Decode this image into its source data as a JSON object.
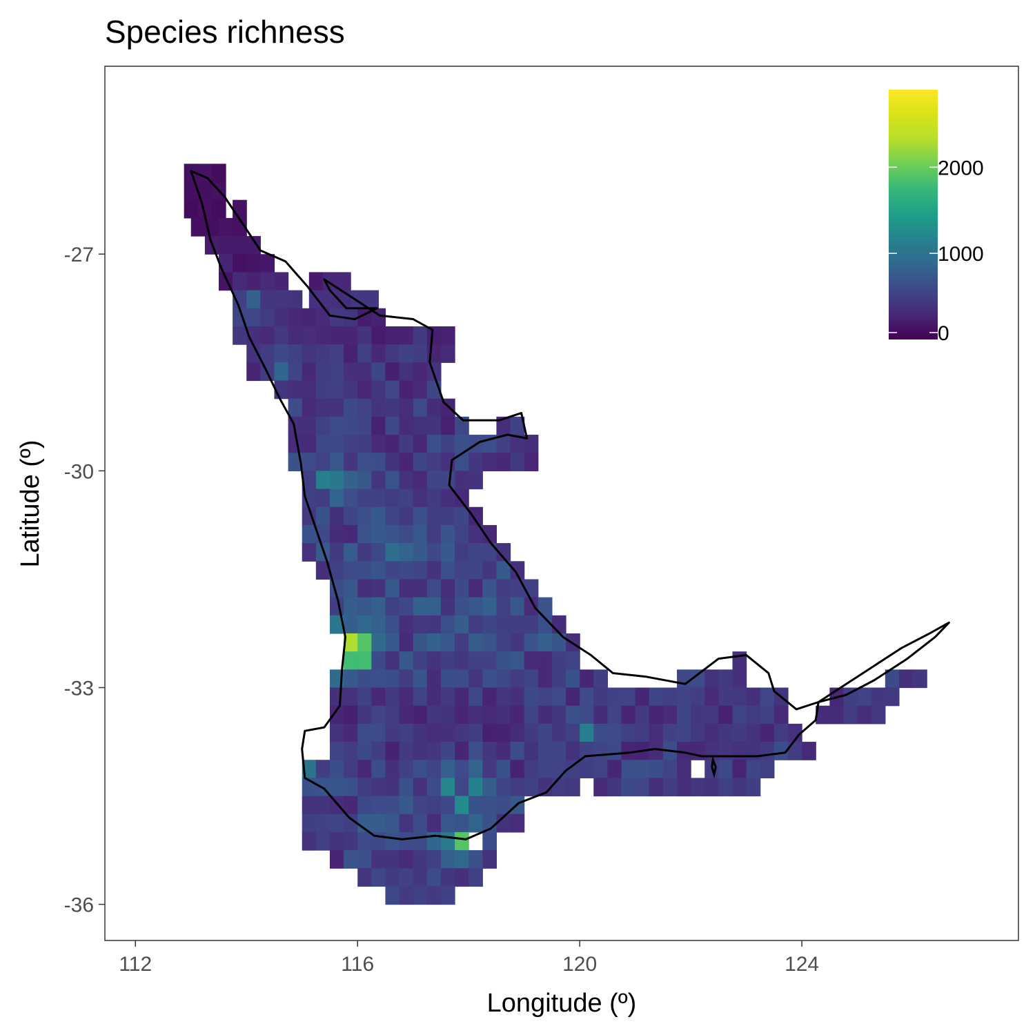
{
  "chart_data": {
    "type": "heatmap",
    "title": "Species richness",
    "xlabel": "Longitude (º)",
    "ylabel": "Latitude (º)",
    "xlim": [
      111.45,
      127.9
    ],
    "ylim": [
      -36.5,
      -24.4
    ],
    "x_ticks": [
      {
        "value": 112,
        "label": "112"
      },
      {
        "value": 116,
        "label": "116"
      },
      {
        "value": 120,
        "label": "120"
      },
      {
        "value": 124,
        "label": "124"
      }
    ],
    "y_ticks": [
      {
        "value": -27,
        "label": "-27"
      },
      {
        "value": -30,
        "label": "-30"
      },
      {
        "value": -33,
        "label": "-33"
      },
      {
        "value": -36,
        "label": "-36"
      }
    ],
    "cell_size": 0.25,
    "colorscale": "viridis",
    "legend": {
      "position": "top-right",
      "min": 0,
      "max": 2900,
      "ticks": [
        {
          "value": 0,
          "label": "0"
        },
        {
          "value": 1000,
          "label": "1000"
        },
        {
          "value": 2000,
          "label": "2000"
        }
      ]
    },
    "grid": false,
    "hotspots": [
      {
        "x": 115.875,
        "y": -32.375,
        "value": 2300
      },
      {
        "x": 116.125,
        "y": -32.375,
        "value": 1900
      },
      {
        "x": 115.875,
        "y": -32.625,
        "value": 1800
      },
      {
        "x": 116.125,
        "y": -32.625,
        "value": 1800
      },
      {
        "x": 117.875,
        "y": -35.125,
        "value": 1900
      },
      {
        "x": 115.375,
        "y": -30.125,
        "value": 1100
      },
      {
        "x": 115.625,
        "y": -30.125,
        "value": 1050
      },
      {
        "x": 116.625,
        "y": -31.0,
        "value": 1150
      },
      {
        "x": 117.875,
        "y": -34.625,
        "value": 1250
      },
      {
        "x": 117.625,
        "y": -34.375,
        "value": 1200
      },
      {
        "x": 118.125,
        "y": -34.375,
        "value": 1150
      },
      {
        "x": 115.125,
        "y": -33.625,
        "value": 1150
      },
      {
        "x": 120.125,
        "y": -33.625,
        "value": 1100
      },
      {
        "x": 115.125,
        "y": -34.125,
        "value": 1000
      },
      {
        "x": 114.625,
        "y": -28.625,
        "value": 850
      },
      {
        "x": 114.125,
        "y": -27.625,
        "value": 800
      }
    ],
    "grid_rows": [
      {
        "lat": -25.875,
        "ranges": [
          [
            113.0,
            113.5
          ]
        ],
        "base": 120
      },
      {
        "lat": -26.125,
        "ranges": [
          [
            113.0,
            113.5
          ]
        ],
        "base": 120
      },
      {
        "lat": -26.375,
        "ranges": [
          [
            113.0,
            113.5
          ],
          [
            113.875,
            114.0
          ]
        ],
        "base": 110
      },
      {
        "lat": -26.625,
        "ranges": [
          [
            113.125,
            114.0
          ]
        ],
        "base": 120
      },
      {
        "lat": -26.875,
        "ranges": [
          [
            113.375,
            114.25
          ]
        ],
        "base": 150
      },
      {
        "lat": -27.125,
        "ranges": [
          [
            113.625,
            114.5
          ]
        ],
        "base": 180
      },
      {
        "lat": -27.375,
        "ranges": [
          [
            113.625,
            114.75
          ],
          [
            115.25,
            115.75
          ]
        ],
        "base": 220
      },
      {
        "lat": -27.625,
        "ranges": [
          [
            113.875,
            115.0
          ],
          [
            115.25,
            116.25
          ]
        ],
        "base": 300
      },
      {
        "lat": -27.875,
        "ranges": [
          [
            113.875,
            116.5
          ]
        ],
        "base": 330
      },
      {
        "lat": -28.125,
        "ranges": [
          [
            113.875,
            117.75
          ]
        ],
        "base": 320
      },
      {
        "lat": -28.375,
        "ranges": [
          [
            114.125,
            117.75
          ]
        ],
        "base": 360
      },
      {
        "lat": -28.625,
        "ranges": [
          [
            114.125,
            117.5
          ]
        ],
        "base": 400
      },
      {
        "lat": -28.875,
        "ranges": [
          [
            114.625,
            117.5
          ]
        ],
        "base": 400
      },
      {
        "lat": -29.125,
        "ranges": [
          [
            114.875,
            117.75
          ]
        ],
        "base": 430
      },
      {
        "lat": -29.375,
        "ranges": [
          [
            114.875,
            118.0
          ],
          [
            118.625,
            119.0
          ]
        ],
        "base": 430
      },
      {
        "lat": -29.625,
        "ranges": [
          [
            114.875,
            119.25
          ]
        ],
        "base": 460
      },
      {
        "lat": -29.875,
        "ranges": [
          [
            114.875,
            119.25
          ]
        ],
        "base": 480
      },
      {
        "lat": -30.125,
        "ranges": [
          [
            115.125,
            118.25
          ]
        ],
        "base": 500
      },
      {
        "lat": -30.375,
        "ranges": [
          [
            115.125,
            118.0
          ]
        ],
        "base": 500
      },
      {
        "lat": -30.625,
        "ranges": [
          [
            115.125,
            118.25
          ]
        ],
        "base": 500
      },
      {
        "lat": -30.875,
        "ranges": [
          [
            115.125,
            118.5
          ]
        ],
        "base": 520
      },
      {
        "lat": -31.125,
        "ranges": [
          [
            115.125,
            118.75
          ]
        ],
        "base": 520
      },
      {
        "lat": -31.375,
        "ranges": [
          [
            115.375,
            119.0
          ]
        ],
        "base": 540
      },
      {
        "lat": -31.625,
        "ranges": [
          [
            115.625,
            119.25
          ]
        ],
        "base": 540
      },
      {
        "lat": -31.875,
        "ranges": [
          [
            115.625,
            119.5
          ]
        ],
        "base": 560
      },
      {
        "lat": -32.125,
        "ranges": [
          [
            115.625,
            119.75
          ]
        ],
        "base": 560
      },
      {
        "lat": -32.375,
        "ranges": [
          [
            115.875,
            120.0
          ]
        ],
        "base": 560
      },
      {
        "lat": -32.625,
        "ranges": [
          [
            115.875,
            120.0
          ],
          [
            122.875,
            123.0
          ]
        ],
        "base": 520
      },
      {
        "lat": -32.875,
        "ranges": [
          [
            115.625,
            120.5
          ],
          [
            121.875,
            123.0
          ],
          [
            125.625,
            126.25
          ]
        ],
        "base": 480
      },
      {
        "lat": -33.125,
        "ranges": [
          [
            115.625,
            123.75
          ],
          [
            124.625,
            125.75
          ]
        ],
        "base": 420
      },
      {
        "lat": -33.375,
        "ranges": [
          [
            115.625,
            123.75
          ],
          [
            124.375,
            125.5
          ]
        ],
        "base": 380
      },
      {
        "lat": -33.625,
        "ranges": [
          [
            115.625,
            124.0
          ]
        ],
        "base": 420
      },
      {
        "lat": -33.875,
        "ranges": [
          [
            115.625,
            124.25
          ]
        ],
        "base": 440
      },
      {
        "lat": -34.125,
        "ranges": [
          [
            115.125,
            122.0
          ],
          [
            122.375,
            123.5
          ]
        ],
        "base": 460
      },
      {
        "lat": -34.375,
        "ranges": [
          [
            115.125,
            120.0
          ],
          [
            120.375,
            123.25
          ]
        ],
        "base": 480
      },
      {
        "lat": -34.625,
        "ranges": [
          [
            115.125,
            119.0
          ]
        ],
        "base": 520
      },
      {
        "lat": -34.875,
        "ranges": [
          [
            115.125,
            119.0
          ]
        ],
        "base": 540
      },
      {
        "lat": -35.125,
        "ranges": [
          [
            115.125,
            118.0
          ],
          [
            118.375,
            118.5
          ]
        ],
        "base": 520
      },
      {
        "lat": -35.375,
        "ranges": [
          [
            115.625,
            118.5
          ]
        ],
        "base": 480
      },
      {
        "lat": -35.625,
        "ranges": [
          [
            116.125,
            118.25
          ]
        ],
        "base": 460
      },
      {
        "lat": -35.875,
        "ranges": [
          [
            116.625,
            117.75
          ]
        ],
        "base": 420
      }
    ],
    "outline": [
      [
        113.0,
        -25.85
      ],
      [
        113.2,
        -26.3
      ],
      [
        113.35,
        -26.8
      ],
      [
        113.55,
        -27.2
      ],
      [
        113.85,
        -27.7
      ],
      [
        114.05,
        -28.15
      ],
      [
        114.35,
        -28.6
      ],
      [
        114.6,
        -29.0
      ],
      [
        114.85,
        -29.35
      ],
      [
        114.98,
        -29.9
      ],
      [
        115.05,
        -30.35
      ],
      [
        115.25,
        -30.8
      ],
      [
        115.45,
        -31.25
      ],
      [
        115.65,
        -31.8
      ],
      [
        115.78,
        -32.3
      ],
      [
        115.72,
        -32.75
      ],
      [
        115.68,
        -33.25
      ],
      [
        115.4,
        -33.55
      ],
      [
        115.05,
        -33.6
      ],
      [
        115.0,
        -33.85
      ],
      [
        115.05,
        -34.25
      ],
      [
        115.4,
        -34.4
      ],
      [
        115.85,
        -34.8
      ],
      [
        116.3,
        -35.05
      ],
      [
        116.8,
        -35.1
      ],
      [
        117.4,
        -35.05
      ],
      [
        117.95,
        -35.1
      ],
      [
        118.4,
        -34.95
      ],
      [
        118.9,
        -34.6
      ],
      [
        119.4,
        -34.45
      ],
      [
        119.75,
        -34.15
      ],
      [
        120.1,
        -33.95
      ],
      [
        120.9,
        -33.9
      ],
      [
        121.35,
        -33.85
      ],
      [
        121.9,
        -33.9
      ],
      [
        122.2,
        -33.95
      ],
      [
        122.9,
        -33.95
      ],
      [
        123.2,
        -33.95
      ],
      [
        123.7,
        -33.9
      ],
      [
        123.95,
        -33.65
      ],
      [
        124.25,
        -33.45
      ],
      [
        124.3,
        -33.2
      ],
      [
        124.8,
        -32.95
      ],
      [
        125.3,
        -32.7
      ],
      [
        125.8,
        -32.45
      ],
      [
        126.3,
        -32.25
      ],
      [
        126.65,
        -32.1
      ],
      [
        126.4,
        -32.3
      ],
      [
        125.9,
        -32.6
      ],
      [
        125.3,
        -32.9
      ],
      [
        124.8,
        -33.1
      ],
      [
        124.3,
        -33.2
      ],
      [
        123.9,
        -33.3
      ],
      [
        123.5,
        -33.05
      ],
      [
        123.4,
        -32.8
      ],
      [
        123.0,
        -32.55
      ],
      [
        122.5,
        -32.6
      ],
      [
        121.9,
        -32.95
      ],
      [
        121.2,
        -32.85
      ],
      [
        120.6,
        -32.8
      ],
      [
        120.2,
        -32.55
      ],
      [
        119.7,
        -32.3
      ],
      [
        119.2,
        -31.9
      ],
      [
        118.85,
        -31.4
      ],
      [
        118.4,
        -31.0
      ],
      [
        118.05,
        -30.6
      ],
      [
        117.65,
        -30.2
      ],
      [
        117.7,
        -29.85
      ],
      [
        118.2,
        -29.6
      ],
      [
        118.7,
        -29.5
      ],
      [
        119.05,
        -29.55
      ],
      [
        118.95,
        -29.2
      ],
      [
        118.55,
        -29.3
      ],
      [
        117.9,
        -29.3
      ],
      [
        117.55,
        -29.05
      ],
      [
        117.3,
        -28.5
      ],
      [
        117.35,
        -28.05
      ],
      [
        117.0,
        -27.9
      ],
      [
        116.4,
        -27.85
      ],
      [
        115.9,
        -27.6
      ],
      [
        115.4,
        -27.35
      ],
      [
        115.5,
        -27.5
      ],
      [
        115.8,
        -27.75
      ],
      [
        116.35,
        -27.75
      ],
      [
        115.95,
        -27.9
      ],
      [
        115.5,
        -27.85
      ],
      [
        115.1,
        -27.45
      ],
      [
        114.7,
        -27.1
      ],
      [
        114.25,
        -26.95
      ],
      [
        113.95,
        -26.6
      ],
      [
        113.6,
        -26.2
      ],
      [
        113.3,
        -25.95
      ],
      [
        113.0,
        -25.85
      ]
    ],
    "islands": [
      [
        [
          122.4,
          -34.0
        ],
        [
          122.45,
          -34.1
        ],
        [
          122.42,
          -34.2
        ],
        [
          122.38,
          -34.1
        ],
        [
          122.4,
          -34.0
        ]
      ]
    ]
  }
}
